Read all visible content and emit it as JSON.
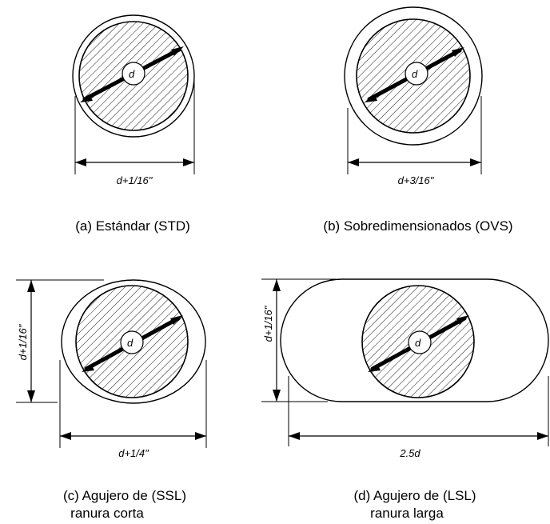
{
  "bolt_label": "d",
  "figures": {
    "a": {
      "dimension": "d+1/16\"",
      "caption": "(a) Estándar (STD)"
    },
    "b": {
      "dimension": "d+3/16\"",
      "caption": "(b) Sobredimensionados (OVS)"
    },
    "c": {
      "dimension_h": "d+1/4\"",
      "dimension_v": "d+1/16\"",
      "caption_line1": "(c) Agujero de  (SSL)",
      "caption_line2": "ranura corta"
    },
    "d": {
      "dimension_h": "2.5d",
      "dimension_v": "d+1/16\"",
      "caption_line1": "(d) Agujero de  (LSL)",
      "caption_line2": "ranura larga"
    }
  }
}
